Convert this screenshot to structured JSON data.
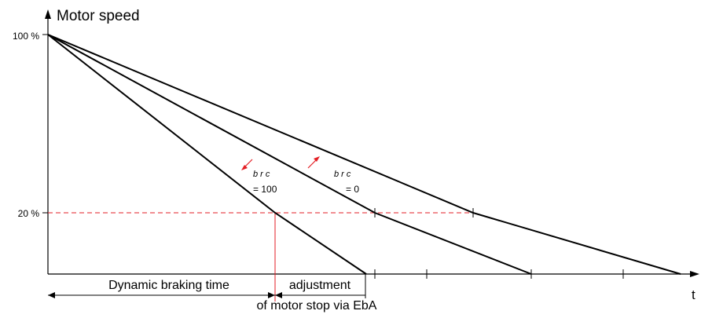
{
  "title": "Motor speed",
  "y_labels": {
    "top": "100 %",
    "mid": "20 %"
  },
  "x_axis_label": "t",
  "annotations": {
    "brc_code": "b r c",
    "brc_100_value": "= 100",
    "brc_0_value": "= 0",
    "dynamic_braking_time": "Dynamic braking time",
    "adjustment": "adjustment",
    "motor_stop_note": "of motor stop via EbA"
  },
  "colors": {
    "line": "#000000",
    "reference": "#e31e24"
  }
}
